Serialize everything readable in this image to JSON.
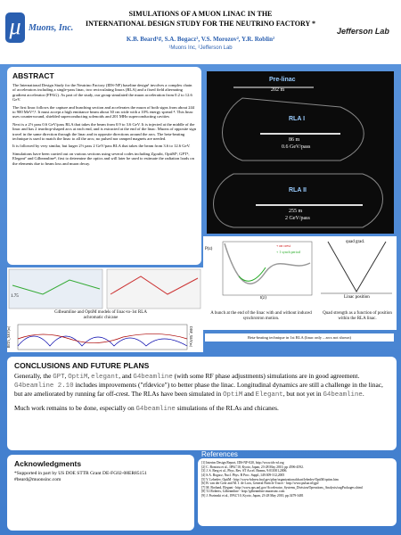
{
  "header": {
    "title_line1": "SIMULATIONS OF A MUON LINAC IN THE",
    "title_line2": "INTERNATIONAL DESIGN STUDY FOR THE NEUTRINO FACTORY *",
    "authors": "K.B. Beard¹#, S.A. Bogacz², V.S. Morozov², Y.R. Roblin²",
    "affiliations": "¹Muons Inc, ²Jefferson Lab",
    "logo_left": "Muons, Inc.",
    "logo_right": "Jefferson Lab"
  },
  "abstract": {
    "title": "ABSTRACT",
    "paragraphs": [
      "The International Design Study for the Neutrino Factory (IDS-NF) baseline design¹ involves a complex chain of accelerators including a single-pass linac, two recirculating linacs (RLA) and a fixed field alternating gradient accelerator (FFAG). As part of the study, our group simulated the muon acceleration from 0.2 to 12.6 GeV.",
      "The first linac follows the capture and bunching section and accelerates the muon of both signs from about 244 to 900 MeV²,³. It must accept a high emittance beam about 30 cm wide with a 10% energy spread ⁴. This linac uses counterwound, shielded superconducting solenoids and 201 MHz superconducting cavities",
      "Next is a 2½ pass 0.6 GeV/pass RLA that takes the beam from 0.9 to 3.6 GeV. It is injected at the middle of the linac and has 2 teardrop-shaped arcs at each end, and is extracted at the end of the linac. Muons of opposite sign travel in the same direction through the linac and in opposite directions around the arcs. The beta-beating technique is used to match the linac to all the arcs; no pulsed nor ramped magnets are needed.",
      "It is followed by very similar, but larger 2½ pass 2 GeV/pass RLA that takes the beam from 3.6 to 12.6 GeV.",
      "Simulations have been carried out on various sections using several codes including Zgoubi, OptiM⁵, GPT⁶, Elegant⁷ and G4beamline⁸, first to determine the optics and will later be used to estimate the radiation loads on the elements due to beam loss and muon decay."
    ]
  },
  "layout_figure": {
    "prelinac": "Pre-linac",
    "prelinac_length": "202 m",
    "rla1": "RLA I",
    "rla1_length": "86 m",
    "rla1_energy": "0.6 GeV/pass",
    "rla2": "RLA II",
    "rla2_length": "255 m",
    "rla2_energy": "2 GeV/pass"
  },
  "bunch_plot": {
    "y_label": "P(z)",
    "x_label": "t(z)",
    "legend": [
      "on crest",
      "1 synch period"
    ],
    "caption": "A bunch at the end of the linac with and without induced synchrotron motion."
  },
  "quad_plot": {
    "y_label": "quad grad.",
    "x_label": "Linac position",
    "caption": "Quad strength as a function of position within the RLA linac."
  },
  "chicane_figure": {
    "label": "1.75",
    "caption": "G4beamline and OptiM models of linac-to-1st RLA achromatic chicane"
  },
  "beta_plot": {
    "left_label": "BETA_X&Y[m]",
    "right_label": "DISP_X&Y[m]",
    "caption": "Beta-beating technique in 1st RLA (linac only – arcs not shown)"
  },
  "conclusions": {
    "title": "CONCLUSIONS AND FUTURE PLANS",
    "paragraphs": [
      [
        "Generally, the ",
        {
          "text": "GPT",
          "mono": true
        },
        ", ",
        {
          "text": "OptiM",
          "mono": true
        },
        ", ",
        {
          "text": "elegant",
          "mono": true
        },
        ", and ",
        {
          "text": "G4beamline",
          "mono": true
        },
        " (with some RF phase adjustments) simulations are in good agreement. ",
        {
          "text": "G4beamline 2.10",
          "mono": true
        },
        " includes improvements (\"rfdevice\") to better phase the linac.  Longitudinal dynamics are still a challenge in the linac, but are ameliorated by running far off-crest.  The RLAs have been simulated in ",
        {
          "text": "OptiM",
          "mono": true
        },
        " and ",
        {
          "text": "Elegant",
          "mono": true
        },
        ", but not yet in ",
        {
          "text": "G4beamline",
          "mono": true
        },
        "."
      ],
      [
        "Much work remains to be done, especially on ",
        {
          "text": "G4beamline",
          "mono": true
        },
        " simulations of the RLAs and chicanes."
      ]
    ]
  },
  "acknowledgments": {
    "title": "Acknowledgments",
    "lines": [
      "*Supported in part by US DOE STTR Grant DE-FG02-08ER85151",
      "#beard@muonsinc.com"
    ]
  },
  "references": {
    "title": "References",
    "items": [
      "[1] Interim Design Report, IDS-NF-020, http://www.ids-nf.org",
      "[2] C. Bontoiu et al., IPAC'10, Kyoto, Japan, 23-28 May 2010, pp 4596-4592.",
      "[3] J. S. Berg et al., Phys. Rev. ST Accel. Beams, 9:011001,2006.",
      "[4] S.A. Bogacz, Nucl. Phys. B Proc. Suppl.,149:309-312,2005",
      "[5] V. Lebedev, OptiM - http://www-bdnew.fnal.gov/pbar/organizationalchart/lebedev/OptiM/optim.htm",
      "[6] B. van der Geer and M. J. de Loos, General Particle Tracer - http://www.pulsar.nl/gpt/",
      "[7] M. Borland, Elegant - http://www.aps.anl.gov/Accelerator_Systems_Division/Operations_Analysis/oagPackages.shtml",
      "[8] T.J.Roberts, G4beamline - http://g4beamline.muonsinc.com",
      "[9] J. Pozimski et al., IPAC'10, Kyoto, Japan, 23-28 May 2010, pp.3479-3481"
    ]
  }
}
